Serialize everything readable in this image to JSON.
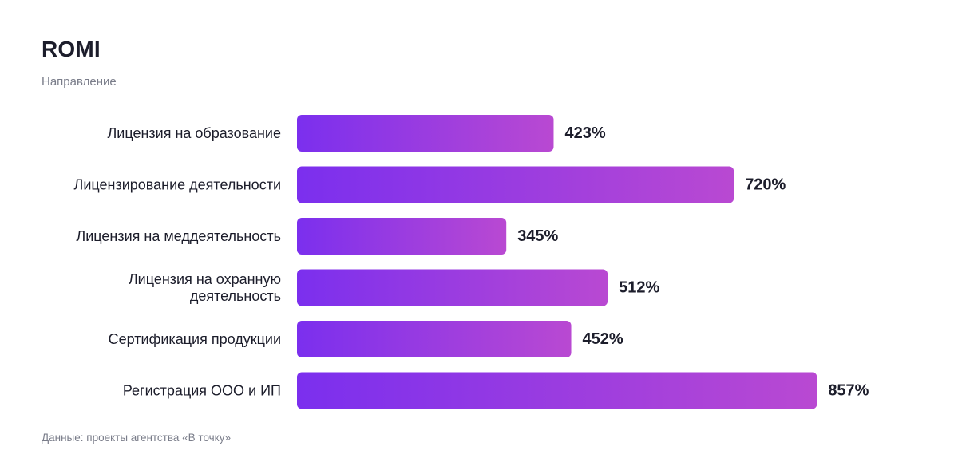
{
  "header": {
    "title": "ROMI",
    "subtitle": "Направление"
  },
  "footer": {
    "source": "Данные: проекты агентства «В точку»"
  },
  "colors": {
    "bar_start": "#7B2FEE",
    "bar_end": "#B949D2",
    "text": "#1C1D2B",
    "muted": "#7A7D8A"
  },
  "chart_data": {
    "type": "bar",
    "orientation": "horizontal",
    "title": "ROMI",
    "subtitle": "Направление",
    "categories": [
      [
        "Лицензия на образование"
      ],
      [
        "Лицензирование деятельности"
      ],
      [
        "Лицензия на меддеятельность"
      ],
      [
        "Лицензия на охранную",
        "деятельность"
      ],
      [
        "Сертификация продукции"
      ],
      [
        "Регистрация ООО и ИП"
      ]
    ],
    "values": [
      423,
      720,
      345,
      512,
      452,
      857
    ],
    "value_labels": [
      "423%",
      "720%",
      "345%",
      "512%",
      "452%",
      "857%"
    ],
    "unit": "%",
    "grid": false,
    "legend": "none"
  }
}
